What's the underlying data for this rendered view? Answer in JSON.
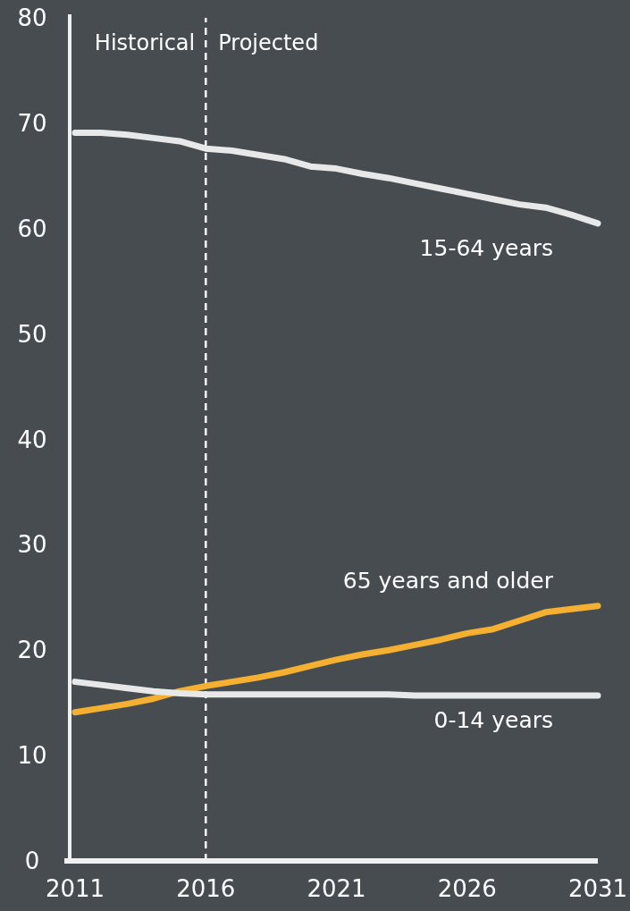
{
  "chart_data": {
    "type": "line",
    "x": [
      2011,
      2012,
      2013,
      2014,
      2015,
      2016,
      2017,
      2018,
      2019,
      2020,
      2021,
      2022,
      2023,
      2024,
      2025,
      2026,
      2027,
      2028,
      2029,
      2030,
      2031
    ],
    "series": [
      {
        "name": "15-64 years",
        "color": "#e8e8e8",
        "values": [
          69.1,
          69.1,
          68.9,
          68.6,
          68.3,
          67.6,
          67.4,
          67.0,
          66.6,
          65.9,
          65.7,
          65.2,
          64.8,
          64.3,
          63.8,
          63.3,
          62.8,
          62.3,
          62.0,
          61.3,
          60.5
        ]
      },
      {
        "name": "65 years and older",
        "color": "#f5b031",
        "values": [
          14.1,
          14.5,
          14.9,
          15.4,
          16.1,
          16.6,
          17.0,
          17.4,
          17.9,
          18.5,
          19.1,
          19.6,
          20.0,
          20.5,
          21.0,
          21.6,
          22.0,
          22.8,
          23.6,
          23.9,
          24.2
        ]
      },
      {
        "name": "0-14 years",
        "color": "#e8e8e8",
        "values": [
          17.0,
          16.7,
          16.4,
          16.1,
          15.9,
          15.8,
          15.8,
          15.8,
          15.8,
          15.8,
          15.8,
          15.8,
          15.8,
          15.7,
          15.7,
          15.7,
          15.7,
          15.7,
          15.7,
          15.7,
          15.7
        ]
      }
    ],
    "xlim": [
      2011,
      2031
    ],
    "xticks": [
      2011,
      2016,
      2021,
      2026,
      2031
    ],
    "ylim": [
      0,
      80
    ],
    "yticks": [
      0,
      10,
      20,
      30,
      40,
      50,
      60,
      70,
      80
    ],
    "ref_lines": [
      {
        "axis": "x",
        "value": 2016,
        "color": "#ffffff",
        "line_style": "dashed"
      }
    ],
    "annotations": [
      "Historical",
      "Projected"
    ],
    "grid": false,
    "legend": false,
    "marker": "none",
    "line_style": "solid"
  }
}
